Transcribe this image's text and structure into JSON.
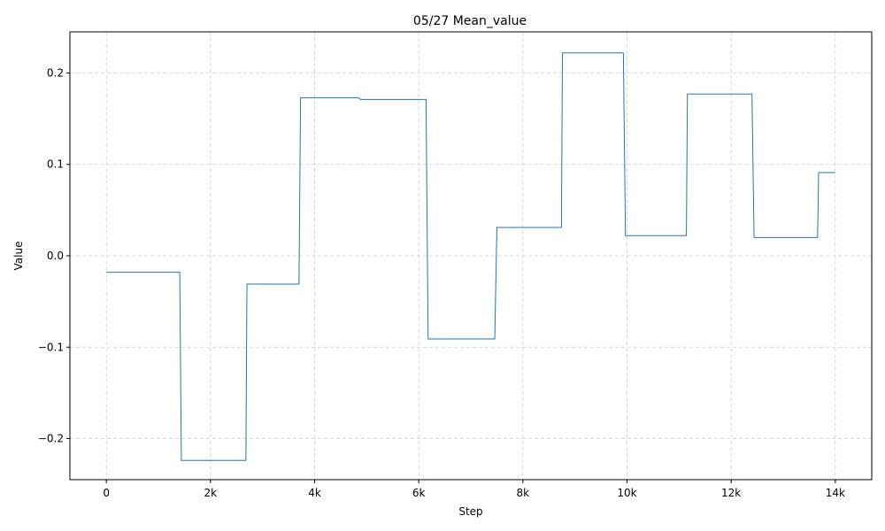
{
  "chart_data": {
    "type": "line",
    "title": "05/27  Mean_value",
    "xlabel": "Step",
    "ylabel": "Value",
    "xlim": [
      -700,
      14700
    ],
    "ylim": [
      -0.245,
      0.245
    ],
    "grid": true,
    "line_color": "#1f77b4",
    "x_ticks": [
      {
        "value": 0,
        "label": "0"
      },
      {
        "value": 2000,
        "label": "2k"
      },
      {
        "value": 4000,
        "label": "4k"
      },
      {
        "value": 6000,
        "label": "6k"
      },
      {
        "value": 8000,
        "label": "8k"
      },
      {
        "value": 10000,
        "label": "10k"
      },
      {
        "value": 12000,
        "label": "12k"
      },
      {
        "value": 14000,
        "label": "14k"
      }
    ],
    "y_ticks": [
      {
        "value": -0.2,
        "label": "−0.2"
      },
      {
        "value": -0.1,
        "label": "−0.1"
      },
      {
        "value": 0.0,
        "label": "0.0"
      },
      {
        "value": 0.1,
        "label": "0.1"
      },
      {
        "value": 0.2,
        "label": "0.2"
      }
    ],
    "series": [
      {
        "x": [
          0,
          1410,
          1440,
          2680,
          2700,
          3700,
          3730,
          4840,
          4880,
          6140,
          6180,
          7460,
          7500,
          8740,
          8760,
          9930,
          9970,
          11140,
          11160,
          12400,
          12440,
          13660,
          13680,
          14000
        ],
        "y": [
          -0.018,
          -0.018,
          -0.224,
          -0.224,
          -0.031,
          -0.031,
          0.173,
          0.173,
          0.171,
          0.171,
          -0.091,
          -0.091,
          0.031,
          0.031,
          0.222,
          0.222,
          0.022,
          0.022,
          0.177,
          0.177,
          0.02,
          0.02,
          0.091,
          0.091
        ]
      }
    ]
  }
}
